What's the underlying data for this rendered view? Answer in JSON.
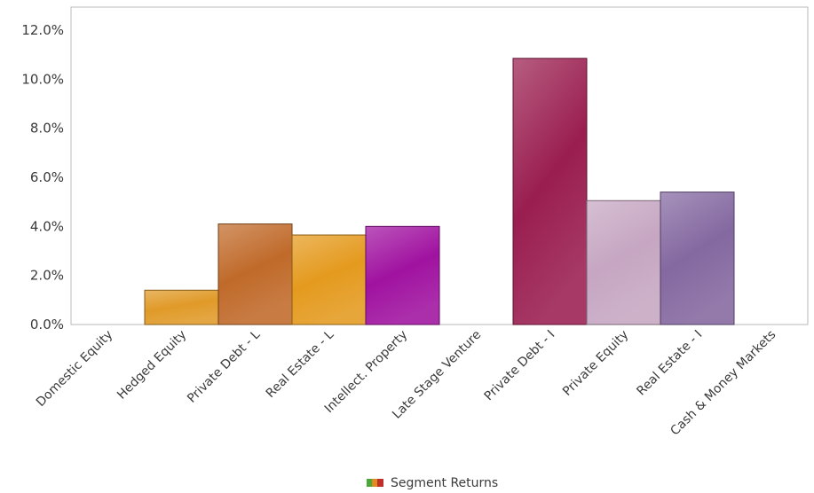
{
  "chart_data": {
    "type": "bar",
    "categories": [
      "Domestic Equity",
      "Hedged Equity",
      "Private Debt - L",
      "Real Estate - L",
      "Intellect. Property",
      "Late Stage Venture",
      "Private Debt - I",
      "Private Equity",
      "Real Estate - I",
      "Cash & Money Markets"
    ],
    "series": [
      {
        "name": "Segment Returns",
        "values": [
          0.0,
          1.4,
          4.1,
          3.65,
          4.0,
          0.0,
          10.85,
          5.05,
          5.4,
          0.0
        ]
      }
    ],
    "bar_colors": [
      "#e0a030",
      "#e09a28",
      "#c06a2a",
      "#e49a1e",
      "#a012a0",
      "#a010a0",
      "#9a1e50",
      "#c6a6c2",
      "#8468a0",
      "#9a9a9a"
    ],
    "ylim": [
      0,
      12.0
    ],
    "yticks": [
      "0.0%",
      "2.0%",
      "4.0%",
      "6.0%",
      "8.0%",
      "10.0%",
      "12.0%"
    ],
    "y_tick_values": [
      0,
      2,
      4,
      6,
      8,
      10,
      12
    ],
    "grid": false,
    "legend": {
      "placement": "bottom-center",
      "icon": "multi-color-swatch-icon"
    }
  }
}
